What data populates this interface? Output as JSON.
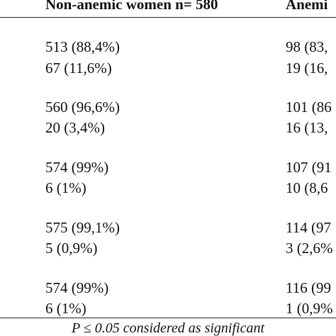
{
  "table": {
    "headers": [
      "Non-anemic women n= 580",
      "Anemi"
    ],
    "groups": [
      {
        "rows": [
          [
            "513 (88,4%)",
            "98 (83,"
          ],
          [
            "67 (11,6%)",
            "19 (16,"
          ]
        ]
      },
      {
        "rows": [
          [
            "560 (96,6%)",
            "101 (86"
          ],
          [
            "20 (3,4%)",
            "16 (13,"
          ]
        ]
      },
      {
        "rows": [
          [
            "574 (99%)",
            "107 (91"
          ],
          [
            "6 (1%)",
            "10 (8,6"
          ]
        ]
      },
      {
        "rows": [
          [
            "575 (99,1%)",
            "114 (97"
          ],
          [
            "5 (0,9%)",
            "3 (2,6%"
          ]
        ]
      },
      {
        "rows": [
          [
            "574 (99%)",
            "116 (99"
          ],
          [
            "6 (1%)",
            "1 (0,9%"
          ]
        ]
      }
    ]
  },
  "footnote": "P ≤ 0.05 considered as significant"
}
